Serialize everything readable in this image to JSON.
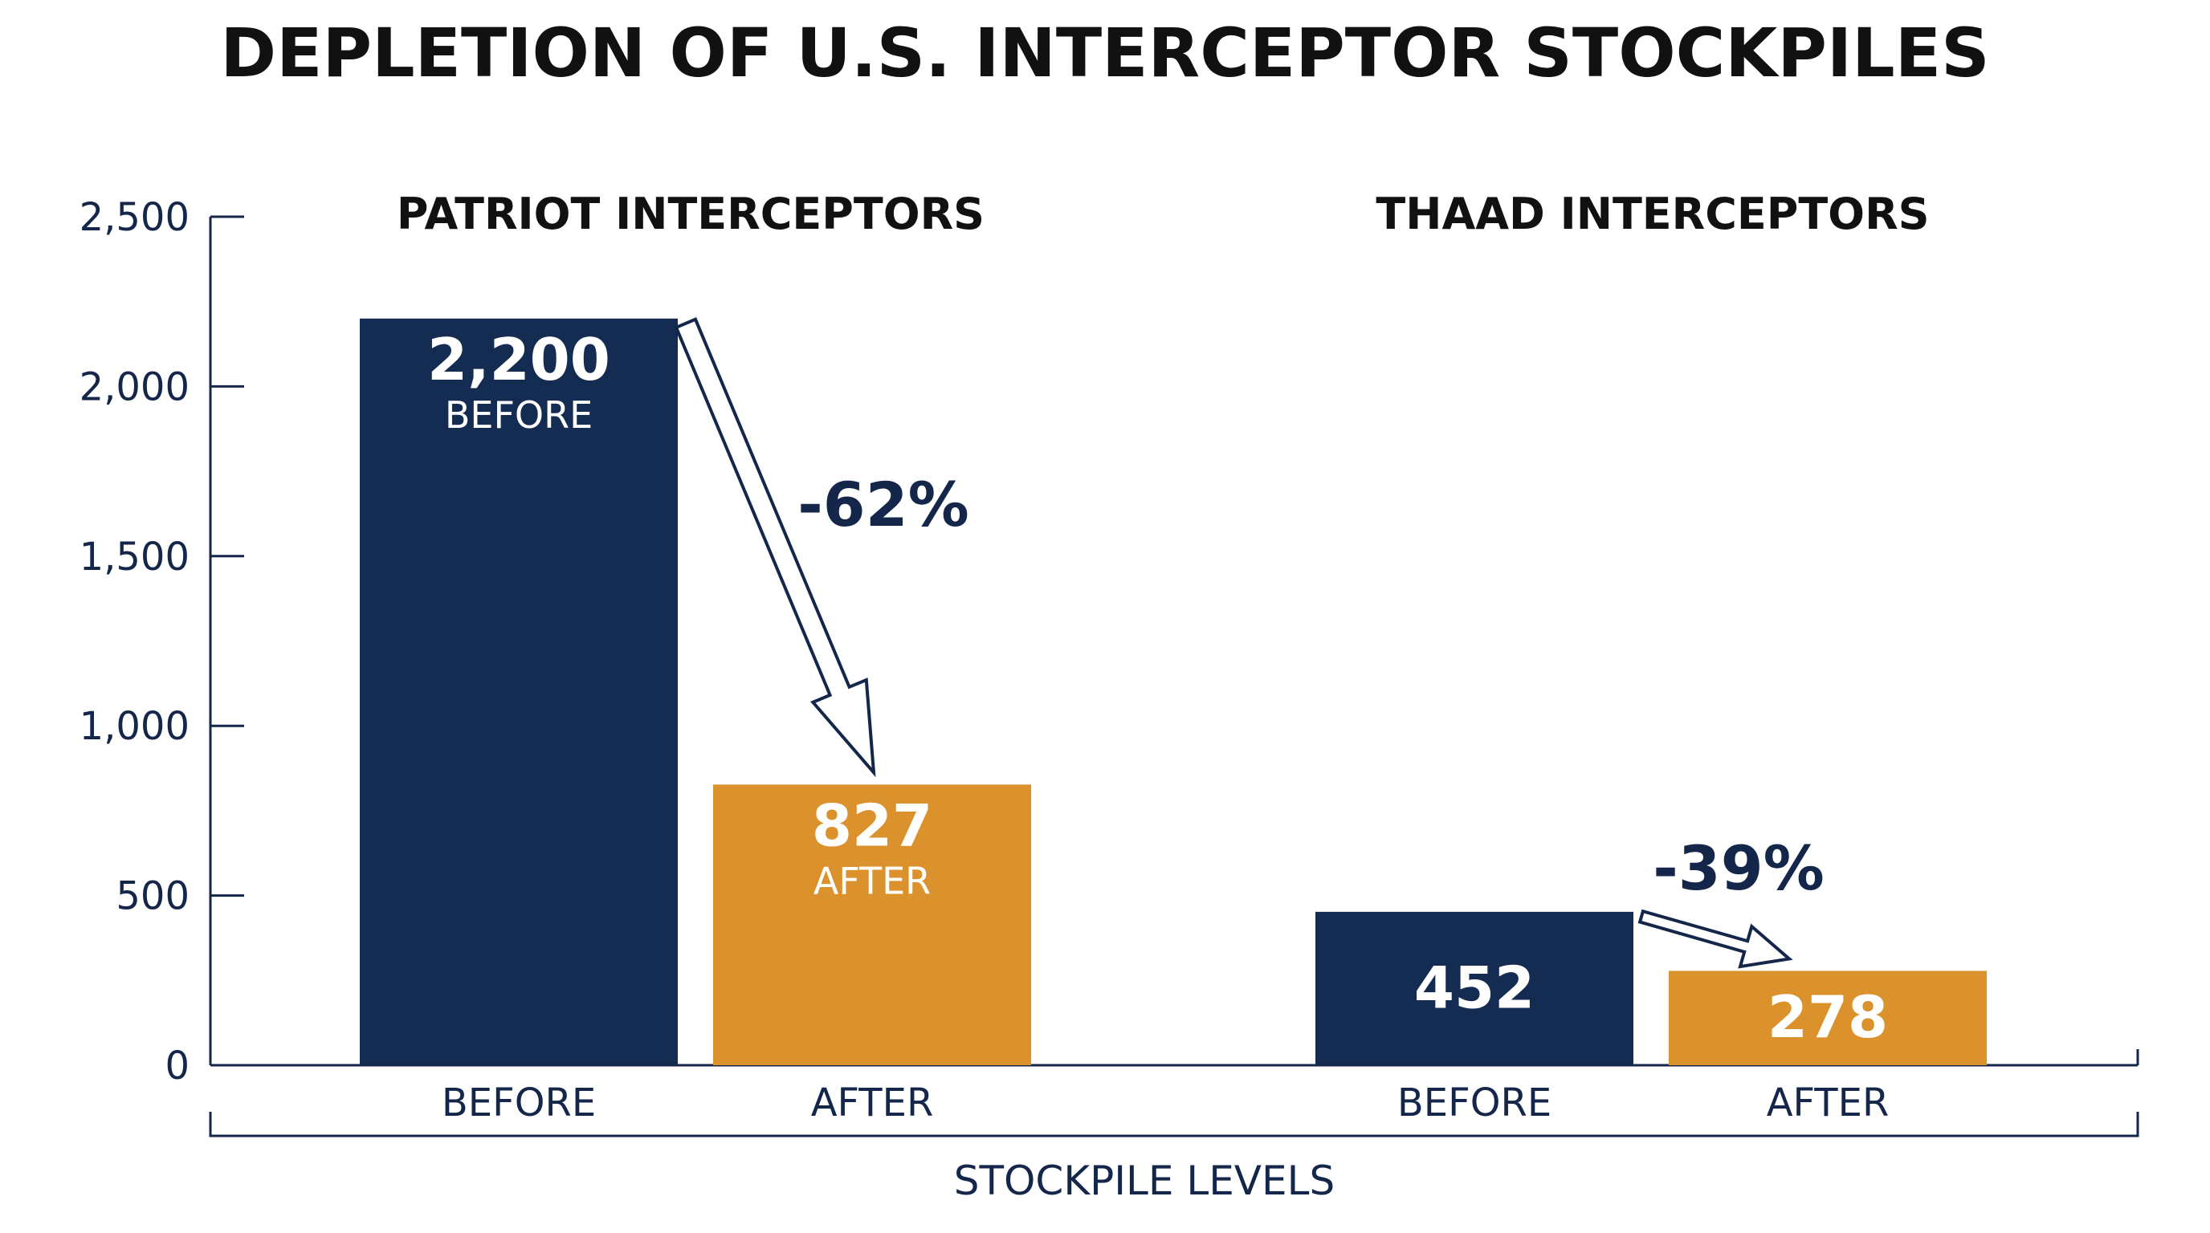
{
  "chart_data": {
    "type": "bar",
    "title": "DEPLETION OF U.S. INTERCEPTOR STOCKPILES",
    "xlabel": "STOCKPILE LEVELS",
    "ylabel": "",
    "ylim": [
      0,
      2500
    ],
    "yticks": [
      0,
      500,
      1000,
      1500,
      2000,
      2500
    ],
    "ytick_labels": [
      "0",
      "500",
      "1,000",
      "1,500",
      "2,000",
      "2,500"
    ],
    "grid": false,
    "colors": {
      "before": "#152c52",
      "after": "#dc922c",
      "text": "#14264a"
    },
    "groups": [
      {
        "label": "PATRIOT INTERCEPTORS",
        "change_label": "-62%",
        "bars": [
          {
            "category": "BEFORE",
            "value": 2200,
            "value_label": "2,200",
            "sub_label": "BEFORE"
          },
          {
            "category": "AFTER",
            "value": 827,
            "value_label": "827",
            "sub_label": "AFTER"
          }
        ]
      },
      {
        "label": "THAAD INTERCEPTORS",
        "change_label": "-39%",
        "bars": [
          {
            "category": "BEFORE",
            "value": 452,
            "value_label": "452",
            "sub_label": ""
          },
          {
            "category": "AFTER",
            "value": 278,
            "value_label": "278",
            "sub_label": ""
          }
        ]
      }
    ]
  }
}
